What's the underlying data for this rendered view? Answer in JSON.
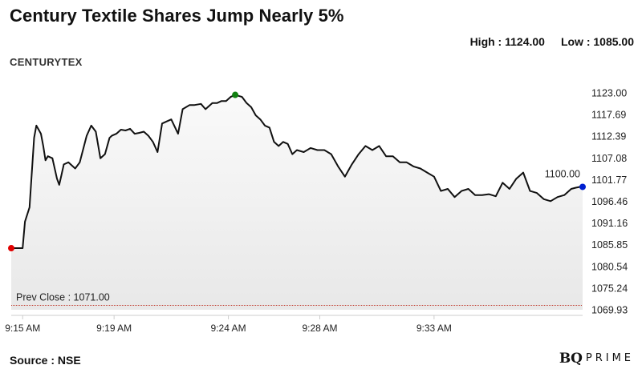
{
  "header": {
    "title": "Century Textile Shares Jump Nearly 5%",
    "high_text": "High : 1124.00",
    "low_text": "Low : 1085.00",
    "ticker": "CENTURYTEX"
  },
  "footer": {
    "source": "Source : NSE",
    "brand_logo": "BQ",
    "brand_word": "PRIME"
  },
  "colors": {
    "line": "#111111",
    "area_top": "#fafafa",
    "area_bottom": "#e8e8e8",
    "start_marker": "#e00000",
    "high_marker": "#108010",
    "end_marker": "#0020d0",
    "prev_close_line": "#c0392b"
  },
  "chart_data": {
    "type": "area",
    "title": "Century Textile Shares Jump Nearly 5%",
    "xlabel": "",
    "ylabel": "",
    "ylim": [
      1069.93,
      1123.0
    ],
    "y_ticks": [
      "1123.00",
      "1117.69",
      "1112.39",
      "1107.08",
      "1101.77",
      "1096.46",
      "1091.16",
      "1085.85",
      "1080.54",
      "1075.24",
      "1069.93"
    ],
    "x_ticks": [
      "9:15 AM",
      "9:19 AM",
      "9:24 AM",
      "9:28 AM",
      "9:33 AM"
    ],
    "x_range_minutes": [
      -0.5,
      24.5
    ],
    "grid": false,
    "prev_close": {
      "value": 1071.0,
      "label": "Prev Close : 1071.00"
    },
    "last_label": "1100.00",
    "series": [
      {
        "x": [
          -0.5,
          -0.3,
          0.0,
          0.1,
          0.3,
          0.5,
          0.6,
          0.7,
          0.8,
          0.9,
          1.0,
          1.1,
          1.3,
          1.5,
          1.6,
          1.7,
          1.8,
          2.0,
          2.3,
          2.5,
          2.8,
          3.0,
          3.2,
          3.4,
          3.6,
          3.8,
          3.9,
          4.1,
          4.3,
          4.5,
          4.7,
          4.9,
          5.1,
          5.3,
          5.5,
          5.7,
          5.9,
          6.1,
          6.3,
          6.5,
          6.8,
          7.0,
          7.3,
          7.5,
          7.8,
          8.0,
          8.3,
          8.5,
          8.7,
          8.9,
          9.1,
          9.3,
          9.6,
          9.8,
          10.0,
          10.2,
          10.4,
          10.6,
          10.8,
          11.0,
          11.2,
          11.4,
          11.6,
          11.8,
          12.0,
          12.3,
          12.6,
          12.9,
          13.2,
          13.5,
          13.8,
          14.1,
          14.4,
          14.7,
          15.0,
          15.3,
          15.6,
          15.9,
          16.2,
          16.5,
          16.8,
          17.1,
          17.4,
          17.7,
          18.0,
          18.3,
          18.6,
          18.9,
          19.2,
          19.5,
          19.8,
          20.1,
          20.4,
          20.7,
          21.0,
          21.3,
          21.6,
          21.9,
          22.2,
          22.5,
          22.8,
          23.1,
          23.4,
          23.7,
          24.0,
          24.2,
          24.4,
          24.5
        ],
        "y": [
          1085.0,
          1085.0,
          1085.0,
          1091.5,
          1095.0,
          1112.0,
          1115.0,
          1114.0,
          1113.0,
          1110.0,
          1106.5,
          1107.5,
          1107.0,
          1102.0,
          1100.5,
          1103.0,
          1105.5,
          1106.0,
          1104.5,
          1106.0,
          1112.5,
          1115.0,
          1113.5,
          1107.0,
          1108.0,
          1112.0,
          1112.5,
          1113.0,
          1114.0,
          1113.8,
          1114.2,
          1113.0,
          1113.2,
          1113.5,
          1112.5,
          1111.0,
          1108.5,
          1115.5,
          1116.0,
          1116.5,
          1113.0,
          1119.0,
          1120.0,
          1120.0,
          1120.3,
          1119.0,
          1120.5,
          1120.5,
          1121.0,
          1121.0,
          1122.0,
          1122.5,
          1122.0,
          1120.5,
          1119.5,
          1117.5,
          1116.5,
          1115.0,
          1114.5,
          1111.0,
          1110.0,
          1111.0,
          1110.5,
          1108.0,
          1109.0,
          1108.5,
          1109.5,
          1109.0,
          1109.0,
          1108.0,
          1105.0,
          1102.5,
          1105.5,
          1108.0,
          1110.0,
          1109.0,
          1110.0,
          1107.5,
          1107.5,
          1106.0,
          1106.0,
          1105.0,
          1104.5,
          1103.5,
          1102.5,
          1099.0,
          1099.5,
          1097.5,
          1099.0,
          1099.5,
          1098.0,
          1098.0,
          1098.2,
          1097.7,
          1101.0,
          1099.5,
          1102.0,
          1103.5,
          1099.0,
          1098.5,
          1097.0,
          1096.5,
          1097.5,
          1098.0,
          1099.5,
          1099.8,
          1100.0,
          1100.0
        ]
      }
    ],
    "markers": {
      "open": {
        "x": -0.5,
        "y": 1085.0
      },
      "high": {
        "x": 9.3,
        "y": 1122.5
      },
      "last": {
        "x": 24.5,
        "y": 1100.0
      }
    }
  }
}
